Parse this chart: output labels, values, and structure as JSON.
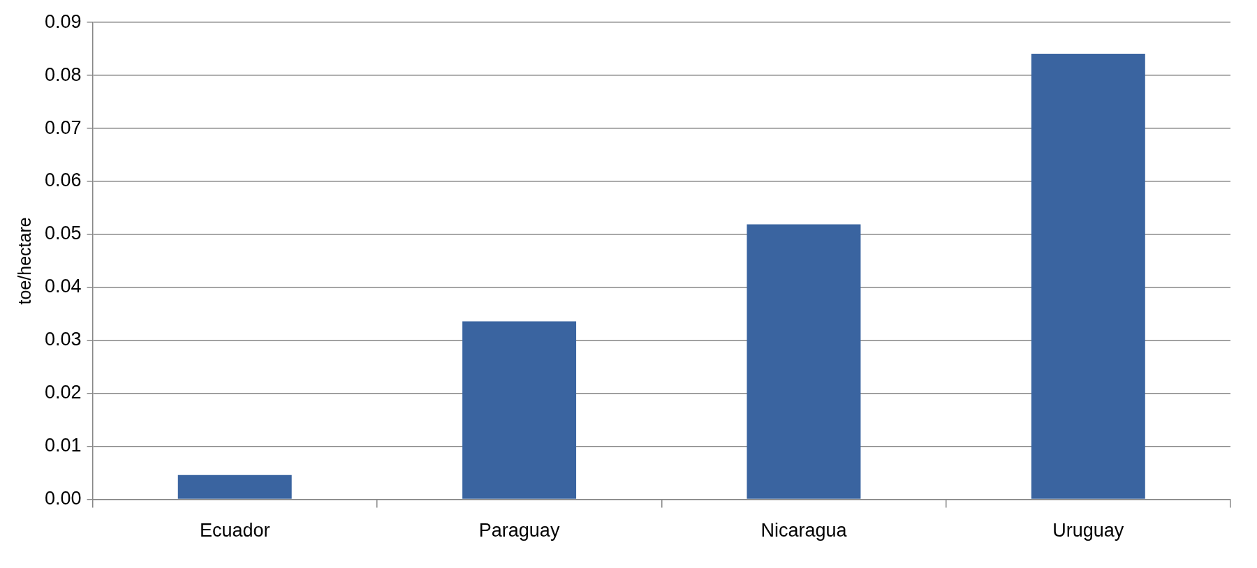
{
  "chart_data": {
    "type": "bar",
    "ylabel": "toe/hectare",
    "categories": [
      "Ecuador",
      "Paraguay",
      "Nicaragua",
      "Uruguay"
    ],
    "values": [
      0.0046,
      0.0336,
      0.0519,
      0.0841
    ],
    "color": "#3a64a0",
    "ylim": [
      0,
      0.09
    ],
    "yticks": [
      {
        "value": 0,
        "label": "0.00"
      },
      {
        "value": 0.01,
        "label": "0.01"
      },
      {
        "value": 0.02,
        "label": "0.02"
      },
      {
        "value": 0.03,
        "label": "0.03"
      },
      {
        "value": 0.04,
        "label": "0.04"
      },
      {
        "value": 0.05,
        "label": "0.05"
      },
      {
        "value": 0.06,
        "label": "0.06"
      },
      {
        "value": 0.07,
        "label": "0.07"
      },
      {
        "value": 0.08,
        "label": "0.08"
      },
      {
        "value": 0.09,
        "label": "0.09"
      }
    ],
    "grid": "y",
    "legend": false
  }
}
